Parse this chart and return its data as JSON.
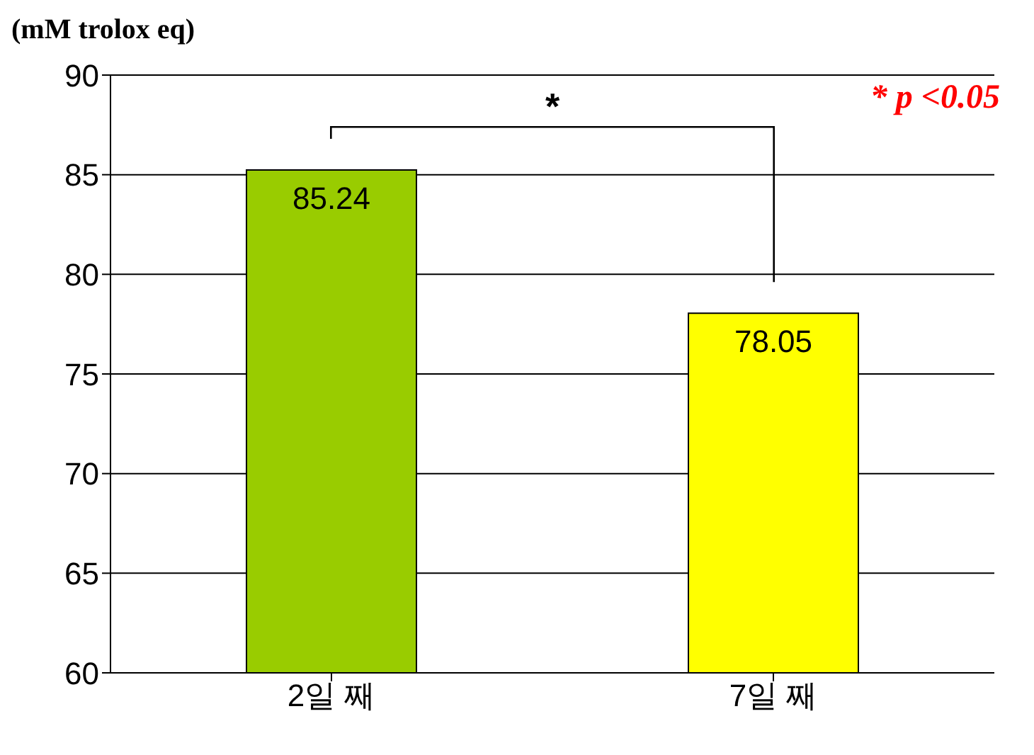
{
  "chart_data": {
    "type": "bar",
    "ylabel": "(mM trolox eq)",
    "categories": [
      "2일 째",
      "7일 째"
    ],
    "values": [
      85.24,
      78.05
    ],
    "colors": [
      "#99cc00",
      "#ffff00"
    ],
    "ylim": [
      60,
      90
    ],
    "yticks": [
      60,
      65,
      70,
      75,
      80,
      85,
      90
    ],
    "grid": "y",
    "data_labels": true,
    "annotations": [
      "*",
      "* p <0.05"
    ]
  }
}
